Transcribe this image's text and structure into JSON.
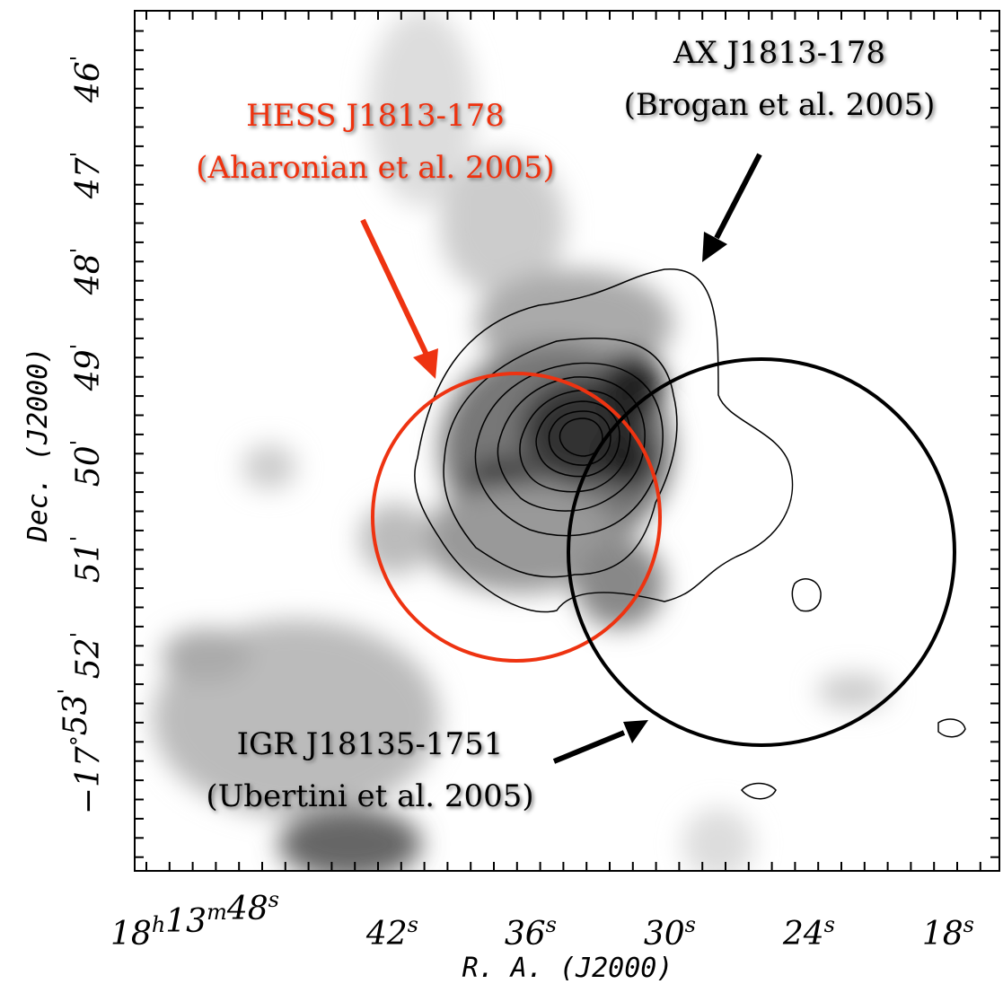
{
  "axes": {
    "x_title": "R. A. (J2000)",
    "y_title": "Dec. (J2000)",
    "x_ticks": [
      {
        "base": [
          "18",
          "13",
          "48"
        ],
        "sup": [
          "h",
          "m",
          "s"
        ]
      },
      {
        "base": [
          "42"
        ],
        "sup": [
          "s"
        ]
      },
      {
        "base": [
          "36"
        ],
        "sup": [
          "s"
        ]
      },
      {
        "base": [
          "30"
        ],
        "sup": [
          "s"
        ]
      },
      {
        "base": [
          "24"
        ],
        "sup": [
          "s"
        ]
      },
      {
        "base": [
          "18"
        ],
        "sup": [
          "s"
        ]
      }
    ],
    "y_ticks": [
      {
        "base": [
          "46"
        ],
        "sup": [
          "'"
        ]
      },
      {
        "base": [
          "47"
        ],
        "sup": [
          "'"
        ]
      },
      {
        "base": [
          "48"
        ],
        "sup": [
          "'"
        ]
      },
      {
        "base": [
          "49"
        ],
        "sup": [
          "'"
        ]
      },
      {
        "base": [
          "50"
        ],
        "sup": [
          "'"
        ]
      },
      {
        "base": [
          "51"
        ],
        "sup": [
          "'"
        ]
      },
      {
        "base": [
          "52"
        ],
        "sup": [
          "'"
        ]
      },
      {
        "base": [
          "−17",
          "53"
        ],
        "sup": [
          "°",
          "'"
        ]
      }
    ]
  },
  "annotations": {
    "hess": {
      "name": "HESS J1813-178",
      "ref": "(Aharonian et al. 2005)"
    },
    "ax": {
      "name": "AX J1813-178",
      "ref": "(Brogan et al. 2005)"
    },
    "igr": {
      "name": "IGR J18135-1751",
      "ref": "(Ubertini et al. 2005)"
    }
  }
}
